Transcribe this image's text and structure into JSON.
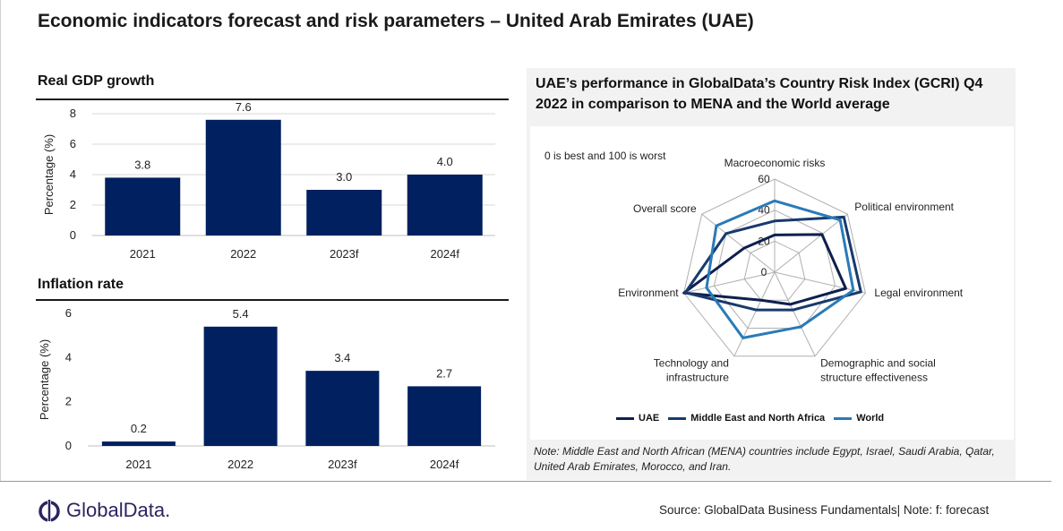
{
  "page": {
    "title": "Economic indicators forecast and risk parameters – United Arab Emirates (UAE)"
  },
  "chart_data": [
    {
      "type": "bar",
      "title": "Real GDP growth",
      "ylabel": "Percentage (%)",
      "categories": [
        "2021",
        "2022",
        "2023f",
        "2024f"
      ],
      "values": [
        3.8,
        7.6,
        3.0,
        4.0
      ],
      "value_labels": [
        "3.8",
        "7.6",
        "3.0",
        "4.0"
      ],
      "yticks": [
        0,
        2,
        4,
        6,
        8
      ],
      "ylim": [
        0,
        8
      ],
      "color": "#002060",
      "grid": true
    },
    {
      "type": "bar",
      "title": "Inflation rate",
      "ylabel": "Percentage (%)",
      "categories": [
        "2021",
        "2022",
        "2023f",
        "2024f"
      ],
      "values": [
        0.2,
        5.4,
        3.4,
        2.7
      ],
      "value_labels": [
        "0.2",
        "5.4",
        "3.4",
        "2.7"
      ],
      "yticks": [
        0,
        2,
        4,
        6
      ],
      "ylim": [
        0,
        6
      ],
      "color": "#002060",
      "grid": false
    },
    {
      "type": "radar",
      "title": "UAE’s performance in GlobalData’s Country Risk Index (GCRI) Q4 2022 in comparison to MENA and the World average",
      "scale_note": "0 is best and 100 is worst",
      "axes": [
        [
          "Macroeconomic risks"
        ],
        [
          "Political environment"
        ],
        [
          "Legal environment"
        ],
        [
          "Demographic and social",
          "structure effectiveness"
        ],
        [
          "Technology and",
          "infrastructure"
        ],
        [
          "Environment"
        ],
        [
          "Overall score"
        ]
      ],
      "rticks": [
        0,
        20,
        40,
        60
      ],
      "rlim": [
        0,
        60
      ],
      "series": [
        {
          "name": "UAE",
          "color": "#0d1f4d",
          "values": [
            24,
            39,
            47,
            23,
            20,
            60,
            25
          ]
        },
        {
          "name": "Middle East and North Africa",
          "color": "#173a6e",
          "values": [
            33,
            57,
            57,
            27,
            27,
            59,
            40
          ]
        },
        {
          "name": "World",
          "color": "#2a7ab8",
          "values": [
            46,
            54,
            52,
            39,
            47,
            45,
            48
          ]
        }
      ],
      "legend_position": "bottom",
      "note": "Note: Middle East and North African (MENA) countries include Egypt, Israel, Saudi Arabia, Qatar, United Arab Emirates, Morocco, and Iran."
    }
  ],
  "footer": {
    "logo_text": "GlobalData.",
    "source": "Source:  GlobalData Business Fundamentals| Note:  f: forecast"
  }
}
